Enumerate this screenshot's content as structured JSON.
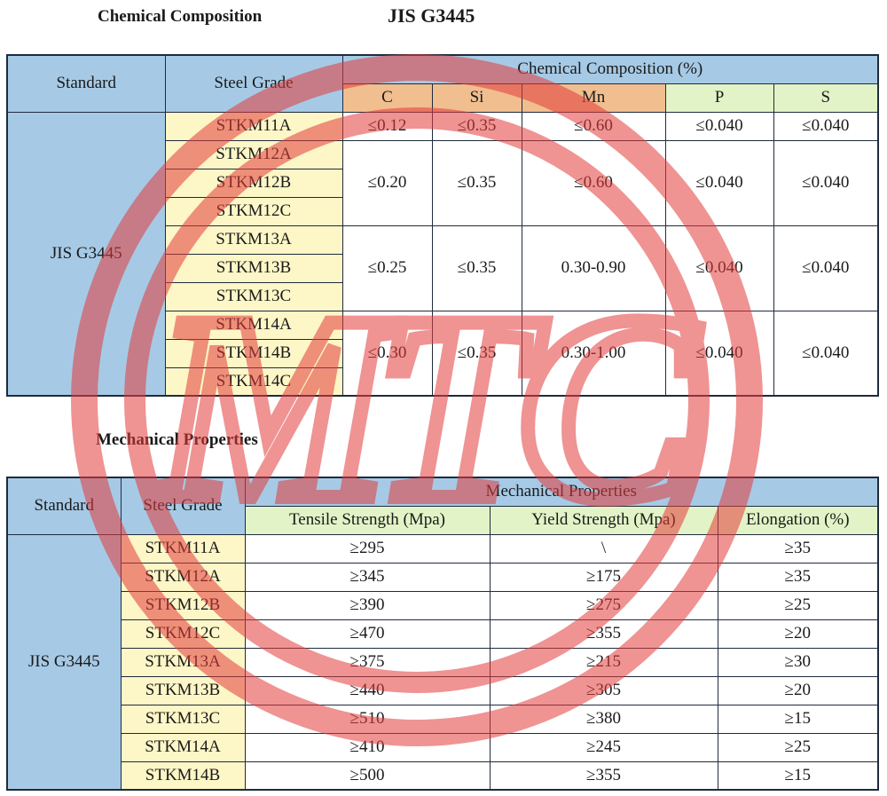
{
  "chem": {
    "heading": "Chemical Composition",
    "standard_title": "JIS G3445",
    "hdr_standard": "Standard",
    "hdr_grade": "Steel Grade",
    "hdr_group": "Chemical Composition (%)",
    "elements": [
      "C",
      "Si",
      "Mn",
      "P",
      "S"
    ],
    "standard": "JIS G3445",
    "grades": [
      "STKM11A",
      "STKM12A",
      "STKM12B",
      "STKM12C",
      "STKM13A",
      "STKM13B",
      "STKM13C",
      "STKM14A",
      "STKM14B",
      "STKM14C"
    ],
    "groups": [
      {
        "c": "≤0.12",
        "si": "≤0.35",
        "mn": "≤0.60",
        "p": "≤0.040",
        "s": "≤0.040"
      },
      {
        "c": "≤0.20",
        "si": "≤0.35",
        "mn": "≤0.60",
        "p": "≤0.040",
        "s": "≤0.040"
      },
      {
        "c": "≤0.25",
        "si": "≤0.35",
        "mn": "0.30-0.90",
        "p": "≤0.040",
        "s": "≤0.040"
      },
      {
        "c": "≤0.30",
        "si": "≤0.35",
        "mn": "0.30-1.00",
        "p": "≤0.040",
        "s": "≤0.040"
      }
    ]
  },
  "mech": {
    "heading": "Mechanical Properties",
    "hdr_standard": "Standard",
    "hdr_grade": "Steel Grade",
    "hdr_group": "Mechanical Properties",
    "hdr_tensile": "Tensile Strength (Mpa)",
    "hdr_yield": "Yield Strength (Mpa)",
    "hdr_elong": "Elongation (%)",
    "standard": "JIS G3445",
    "rows": [
      {
        "grade": "STKM11A",
        "tensile": "≥295",
        "yield": "\\",
        "elong": "≥35"
      },
      {
        "grade": "STKM12A",
        "tensile": "≥345",
        "yield": "≥175",
        "elong": "≥35"
      },
      {
        "grade": "STKM12B",
        "tensile": "≥390",
        "yield": "≥275",
        "elong": "≥25"
      },
      {
        "grade": "STKM12C",
        "tensile": "≥470",
        "yield": "≥355",
        "elong": "≥20"
      },
      {
        "grade": "STKM13A",
        "tensile": "≥375",
        "yield": "≥215",
        "elong": "≥30"
      },
      {
        "grade": "STKM13B",
        "tensile": "≥440",
        "yield": "≥305",
        "elong": "≥20"
      },
      {
        "grade": "STKM13C",
        "tensile": "≥510",
        "yield": "≥380",
        "elong": "≥15"
      },
      {
        "grade": "STKM14A",
        "tensile": "≥410",
        "yield": "≥245",
        "elong": "≥25"
      },
      {
        "grade": "STKM14B",
        "tensile": "≥500",
        "yield": "≥355",
        "elong": "≥15"
      }
    ]
  },
  "watermark": {
    "text": "MTC",
    "color": "#e23b3b"
  }
}
